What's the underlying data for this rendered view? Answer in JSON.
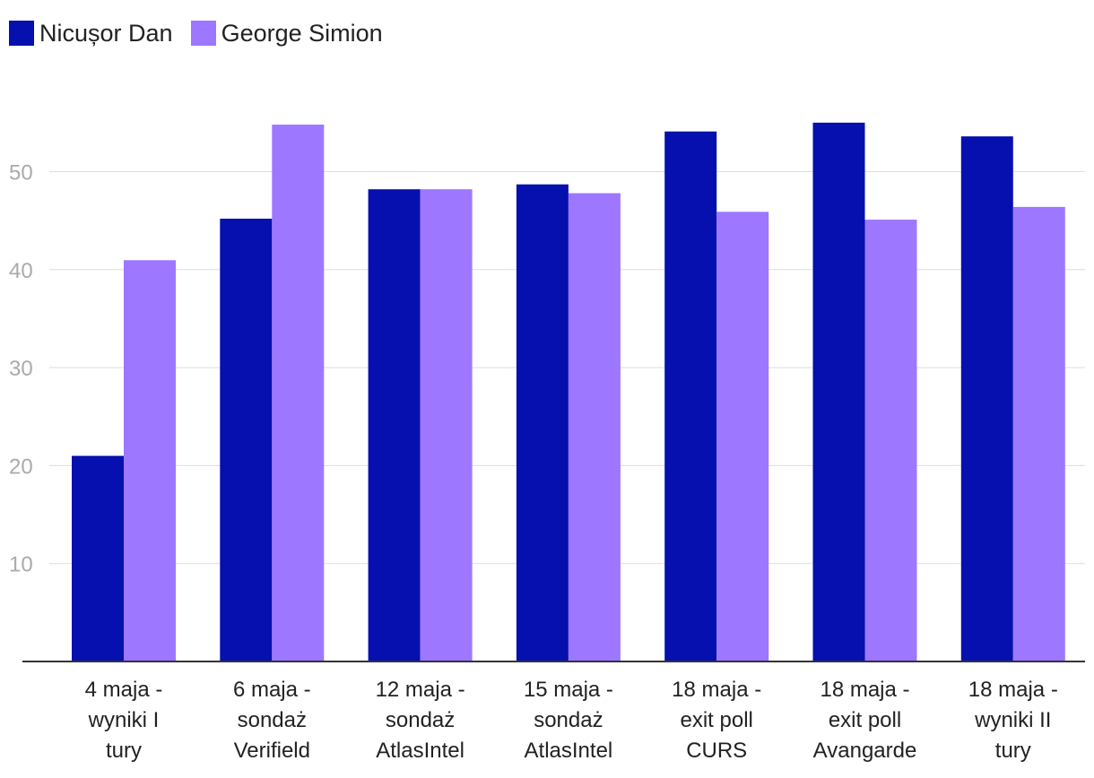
{
  "chart_data": {
    "type": "bar",
    "title": "",
    "xlabel": "",
    "ylabel": "",
    "categories": [
      [
        "4 maja -",
        "wyniki I",
        "tury"
      ],
      [
        "6 maja -",
        "sondaż",
        "Verifield"
      ],
      [
        "12 maja -",
        "sondaż",
        "AtlasIntel"
      ],
      [
        "15 maja -",
        "sondaż",
        "AtlasIntel"
      ],
      [
        "18 maja -",
        "exit poll",
        "CURS"
      ],
      [
        "18 maja -",
        "exit poll",
        "Avangarde"
      ],
      [
        "18 maja -",
        "wyniki II",
        "tury"
      ]
    ],
    "series": [
      {
        "name": "Nicușor Dan",
        "color": "#0510ae",
        "values": [
          20.99,
          45.2,
          48.2,
          48.7,
          54.1,
          55.0,
          53.6
        ]
      },
      {
        "name": "George Simion",
        "color": "#9d77ff",
        "values": [
          40.96,
          54.8,
          48.2,
          47.8,
          45.9,
          45.1,
          46.4
        ]
      }
    ],
    "yticks": [
      10,
      20,
      30,
      40,
      50
    ],
    "ylim": [
      0,
      55
    ],
    "grid": true,
    "legend_position": "top-left"
  }
}
